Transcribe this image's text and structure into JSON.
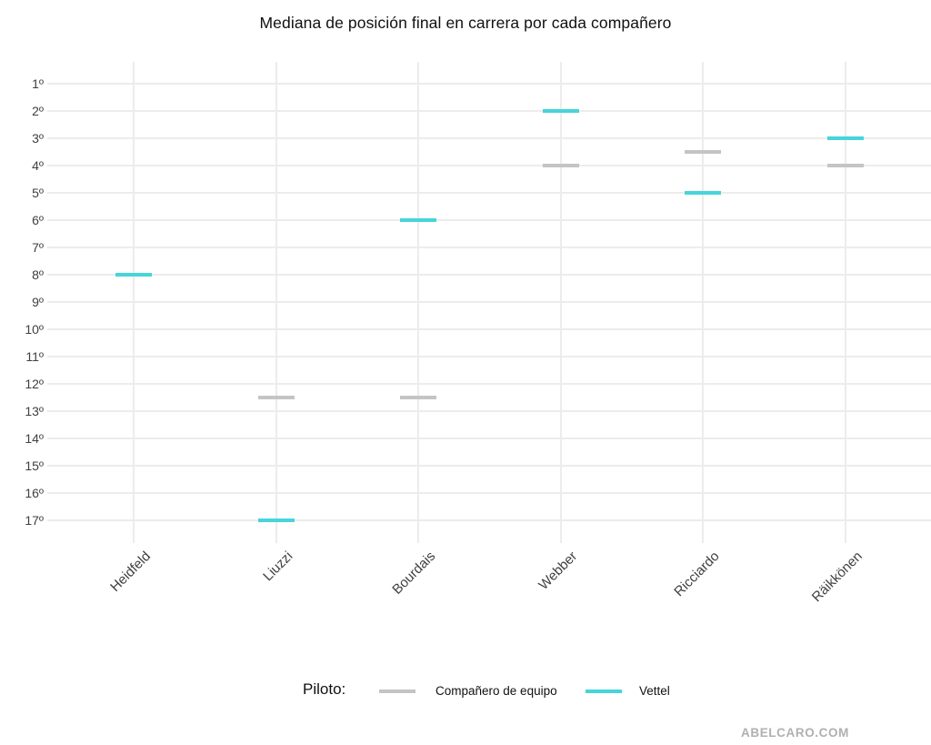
{
  "title": "Mediana de posición final en carrera por cada compañero",
  "watermark": "ABELCARO.COM",
  "legend": {
    "label": "Piloto:",
    "items": [
      {
        "name": "Compañero de equipo",
        "color": "#c4c4c4"
      },
      {
        "name": "Vettel",
        "color": "#46d5da"
      }
    ]
  },
  "chart_data": {
    "type": "scatter",
    "marker": "horizontal-dash",
    "title": "Mediana de posición final en carrera por cada compañero",
    "categories": [
      "Heidfeld",
      "Liuzzi",
      "Bourdais",
      "Webber",
      "Ricciardo",
      "Räikkönen"
    ],
    "y_axis": {
      "tick_labels": [
        "1º",
        "2º",
        "3º",
        "4º",
        "5º",
        "6º",
        "7º",
        "8º",
        "9º",
        "10º",
        "11º",
        "12º",
        "13º",
        "14º",
        "15º",
        "16º",
        "17º"
      ],
      "range": [
        1,
        17
      ],
      "inverted": true
    },
    "series": [
      {
        "name": "Compañero de equipo",
        "color": "#c4c4c4",
        "values": [
          null,
          12.5,
          12.5,
          4,
          3.5,
          4
        ]
      },
      {
        "name": "Vettel",
        "color": "#46d5da",
        "values": [
          8,
          17,
          6,
          2,
          5,
          3
        ]
      }
    ],
    "grid": true,
    "legend_position": "bottom",
    "legend_title": "Piloto:"
  }
}
